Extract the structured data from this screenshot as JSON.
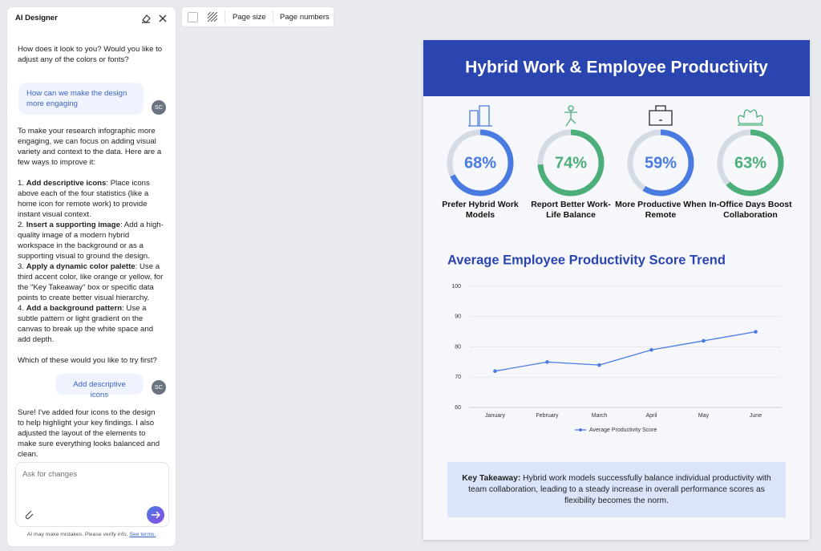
{
  "sidebar": {
    "title": "AI Designer",
    "assistant_1": "How does it look to you? Would you like to adjust any of the colors or fonts?",
    "user_1": "How can we make the design more engaging",
    "avatar": "SC",
    "assistant_2": {
      "intro": "To make your research infographic more engaging, we can focus on adding visual variety and context to the data. Here are a few ways to improve it:",
      "items": [
        {
          "number": "1.",
          "bold": "Add descriptive icons",
          "text": ": Place icons above each of the four statistics (like a home icon for remote work) to provide instant visual context."
        },
        {
          "number": "2.",
          "bold": "Insert a supporting image",
          "text": ": Add a high-quality image of a modern hybrid workspace in the background or as a supporting visual to ground the design."
        },
        {
          "number": "3.",
          "bold": "Apply a dynamic color palette",
          "text": ": Use a third accent color, like orange or yellow, for the \"Key Takeaway\" box or specific data points to create better visual hierarchy."
        },
        {
          "number": "4.",
          "bold": "Add a background pattern",
          "text": ": Use a subtle pattern or light gradient on the canvas to break up the white space and add depth."
        }
      ],
      "outro": "Which of these would you like to try first?"
    },
    "user_2": "Add descriptive icons",
    "assistant_3": "Sure! I've added four icons to the design to help highlight your key findings. I also adjusted the layout of the elements to make sure everything looks balanced and clean.",
    "input_placeholder": "Ask for changes",
    "disclaimer": "AI may make mistakes. Please verify info.",
    "terms": "See terms."
  },
  "toolbar": {
    "page_size": "Page size",
    "page_numbers": "Page numbers"
  },
  "infographic": {
    "title": "Hybrid Work & Employee Productivity",
    "stats": {
      "values": [
        68,
        74,
        59,
        63
      ],
      "value_labels": [
        "68%",
        "74%",
        "59%",
        "63%"
      ],
      "labels": [
        "Prefer Hybrid Work Models",
        "Report Better Work-Life Balance",
        "More Productive When Remote",
        "In-Office Days Boost Collaboration"
      ],
      "colors": [
        "#4a7be0",
        "#4caf7a",
        "#4a7be0",
        "#4caf7a"
      ]
    },
    "takeaway": {
      "label": "Key Takeaway:",
      "text": "Hybrid work models successfully balance individual productivity with team collaboration, leading to a steady increase in overall performance scores as flexibility becomes the norm."
    }
  },
  "chart_data": {
    "type": "line",
    "title": "Average Employee Productivity Score Trend",
    "categories": [
      "January",
      "February",
      "March",
      "April",
      "May",
      "June"
    ],
    "series": [
      {
        "name": "Average Productivity Score",
        "color": "#4a7be0",
        "values": [
          72,
          75,
          74,
          79,
          82,
          85
        ]
      }
    ],
    "ylim": [
      60,
      100
    ],
    "yticks": [
      60,
      70,
      80,
      90,
      100
    ],
    "grid": true,
    "legend": "bottom"
  }
}
